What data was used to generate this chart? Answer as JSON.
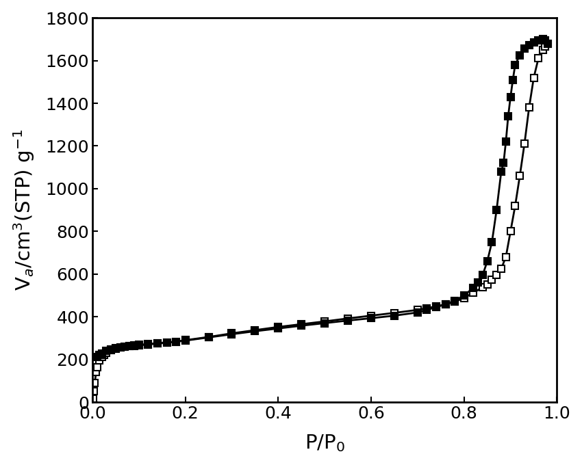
{
  "adsorption_x": [
    0.001,
    0.003,
    0.005,
    0.008,
    0.01,
    0.015,
    0.02,
    0.025,
    0.03,
    0.04,
    0.05,
    0.06,
    0.07,
    0.08,
    0.09,
    0.1,
    0.12,
    0.14,
    0.16,
    0.18,
    0.2,
    0.25,
    0.3,
    0.35,
    0.4,
    0.45,
    0.5,
    0.55,
    0.6,
    0.65,
    0.7,
    0.72,
    0.74,
    0.76,
    0.78,
    0.8,
    0.82,
    0.84,
    0.85,
    0.86,
    0.87,
    0.88,
    0.89,
    0.9,
    0.91,
    0.92,
    0.93,
    0.94,
    0.95,
    0.96,
    0.97,
    0.975,
    0.98
  ],
  "adsorption_y": [
    15,
    50,
    90,
    140,
    165,
    195,
    212,
    222,
    230,
    242,
    250,
    256,
    260,
    263,
    265,
    268,
    272,
    276,
    280,
    283,
    290,
    305,
    322,
    337,
    352,
    365,
    378,
    392,
    405,
    418,
    432,
    440,
    448,
    458,
    470,
    488,
    512,
    538,
    552,
    572,
    595,
    625,
    680,
    800,
    920,
    1060,
    1210,
    1380,
    1520,
    1610,
    1650,
    1665,
    1680
  ],
  "desorption_x": [
    0.98,
    0.975,
    0.97,
    0.96,
    0.95,
    0.94,
    0.93,
    0.92,
    0.91,
    0.905,
    0.9,
    0.895,
    0.89,
    0.885,
    0.88,
    0.87,
    0.86,
    0.85,
    0.84,
    0.83,
    0.82,
    0.8,
    0.78,
    0.76,
    0.74,
    0.72,
    0.7,
    0.65,
    0.6,
    0.55,
    0.5,
    0.45,
    0.4,
    0.35,
    0.3,
    0.25,
    0.2,
    0.18,
    0.16,
    0.14,
    0.12,
    0.1,
    0.09,
    0.08,
    0.07,
    0.06,
    0.05,
    0.04,
    0.03,
    0.02,
    0.015,
    0.01
  ],
  "desorption_y": [
    1680,
    1695,
    1700,
    1695,
    1685,
    1672,
    1655,
    1625,
    1580,
    1510,
    1430,
    1340,
    1220,
    1120,
    1080,
    900,
    750,
    660,
    595,
    560,
    535,
    500,
    475,
    458,
    445,
    432,
    420,
    405,
    393,
    382,
    370,
    358,
    345,
    332,
    318,
    303,
    288,
    283,
    278,
    274,
    270,
    266,
    264,
    262,
    259,
    256,
    252,
    248,
    240,
    228,
    220,
    210
  ],
  "xlabel": "P/P$_0$",
  "ylabel": "V$_a$/cm$^3$(STP) g$^{-1}$",
  "xlim": [
    0.0,
    1.0
  ],
  "ylim": [
    0,
    1800
  ],
  "xticks": [
    0.0,
    0.2,
    0.4,
    0.6,
    0.8,
    1.0
  ],
  "yticks": [
    0,
    200,
    400,
    600,
    800,
    1000,
    1200,
    1400,
    1600,
    1800
  ],
  "line_color": "#000000",
  "marker_size": 7,
  "line_width": 2.0,
  "background_color": "#ffffff",
  "tick_label_fontsize": 18,
  "axis_label_fontsize": 21
}
